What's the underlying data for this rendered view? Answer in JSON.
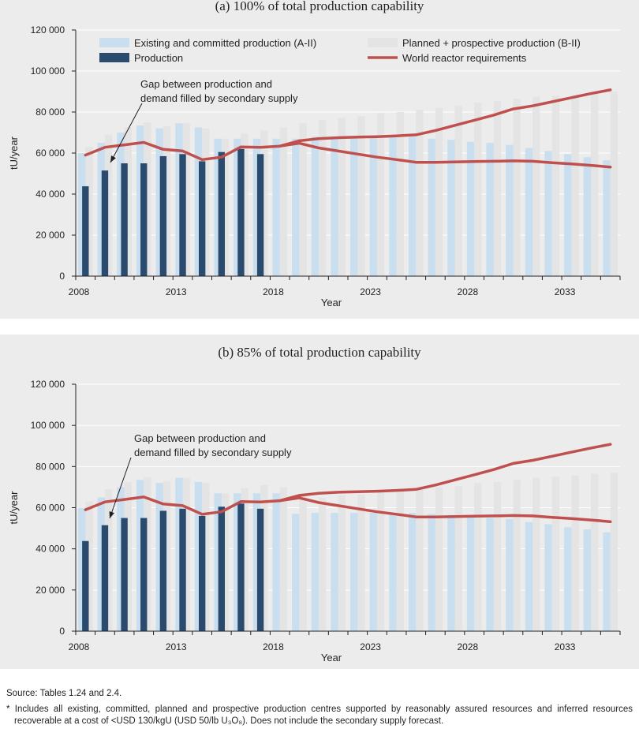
{
  "footer": {
    "source": "Source: Tables 1.24 and 2.4.",
    "note": "* Includes all existing, committed, planned and prospective production centres supported by reasonably assured resources and inferred resources recoverable at a cost of <USD 130/kgU (USD 50/lb U₃O₈). Does not include the secondary supply forecast."
  },
  "colors": {
    "existing": "#c9dff0",
    "planned": "#e4e4e4",
    "production": "#2a4b6e",
    "requirements": "#c0504d",
    "panel_background": "#ececec"
  },
  "chart_data": [
    {
      "type": "bar",
      "title": "(a) 100% of total production capability",
      "xlabel": "Year",
      "ylabel": "tU/year",
      "ylim": [
        0,
        120000
      ],
      "yticks": [
        0,
        20000,
        40000,
        60000,
        80000,
        100000,
        120000
      ],
      "ytick_labels": [
        "0",
        "20 000",
        "40 000",
        "60 000",
        "80 000",
        "100 000",
        "120 000"
      ],
      "xtick_labels": [
        "2008",
        "2013",
        "2018",
        "2023",
        "2028",
        "2033"
      ],
      "grid": true,
      "legend_position": "top",
      "annotation": {
        "text_lines": [
          "Gap between production and",
          "demand filled by secondary supply"
        ],
        "arrow_to_year": 2009
      },
      "categories": [
        2008,
        2009,
        2010,
        2011,
        2012,
        2013,
        2014,
        2015,
        2016,
        2017,
        2018,
        2019,
        2020,
        2021,
        2022,
        2023,
        2024,
        2025,
        2026,
        2027,
        2028,
        2029,
        2030,
        2031,
        2032,
        2033,
        2034,
        2035
      ],
      "series": [
        {
          "name": "Existing and committed production (A-II)",
          "kind": "bar",
          "values": [
            60000,
            65000,
            70000,
            73500,
            72000,
            74500,
            72500,
            67000,
            67000,
            67000,
            67000,
            67000,
            68000,
            68000,
            68000,
            68000,
            68000,
            68000,
            67000,
            66500,
            65500,
            65000,
            64000,
            62500,
            61000,
            59500,
            58000,
            56500
          ]
        },
        {
          "name": "Planned + prospective production (B-II)",
          "kind": "bar",
          "values": [
            63000,
            69000,
            72500,
            75000,
            73000,
            74500,
            72000,
            67000,
            69500,
            71000,
            72500,
            74500,
            76000,
            77000,
            78000,
            79500,
            80000,
            81000,
            82000,
            83000,
            84500,
            85500,
            86500,
            87500,
            88000,
            88500,
            89000,
            90000
          ]
        },
        {
          "name": "Production",
          "kind": "bar",
          "values": [
            43800,
            51500,
            55000,
            55000,
            58500,
            59500,
            56000,
            60500,
            62000,
            59500,
            null,
            null,
            null,
            null,
            null,
            null,
            null,
            null,
            null,
            null,
            null,
            null,
            null,
            null,
            null,
            null,
            null,
            null
          ]
        },
        {
          "name": "World reactor requirements",
          "kind": "line",
          "values": [
            59000,
            62800,
            64000,
            65200,
            61800,
            61000,
            56800,
            58000,
            63000,
            62800,
            63400,
            64800,
            62500,
            61000,
            59500,
            58000,
            56800,
            55500,
            55500,
            55700,
            55900,
            56000,
            56200,
            56000,
            55300,
            54700,
            54000,
            53200
          ]
        },
        {
          "name": "",
          "kind": "line",
          "values": [
            null,
            null,
            null,
            null,
            null,
            null,
            null,
            null,
            null,
            null,
            63400,
            66000,
            67000,
            67500,
            67800,
            68000,
            68400,
            68900,
            71000,
            73500,
            76000,
            78500,
            81500,
            83000,
            85000,
            87000,
            89000,
            90800
          ]
        }
      ]
    },
    {
      "type": "bar",
      "title": "(b) 85% of total production capability",
      "xlabel": "Year",
      "ylabel": "tU/year",
      "ylim": [
        0,
        120000
      ],
      "yticks": [
        0,
        20000,
        40000,
        60000,
        80000,
        100000,
        120000
      ],
      "ytick_labels": [
        "0",
        "20 000",
        "40 000",
        "60 000",
        "80 000",
        "100 000",
        "120 000"
      ],
      "xtick_labels": [
        "2008",
        "2013",
        "2018",
        "2023",
        "2028",
        "2033"
      ],
      "grid": true,
      "legend_position": "none",
      "annotation": {
        "text_lines": [
          "Gap between production and",
          "demand filled by secondary supply"
        ],
        "arrow_to_year": 2009
      },
      "categories": [
        2008,
        2009,
        2010,
        2011,
        2012,
        2013,
        2014,
        2015,
        2016,
        2017,
        2018,
        2019,
        2020,
        2021,
        2022,
        2023,
        2024,
        2025,
        2026,
        2027,
        2028,
        2029,
        2030,
        2031,
        2032,
        2033,
        2034,
        2035
      ],
      "series": [
        {
          "name": "Existing and committed production (A-II)",
          "kind": "bar",
          "values": [
            60000,
            65000,
            70000,
            73500,
            72000,
            74500,
            72500,
            67000,
            67000,
            67000,
            67000,
            57000,
            57500,
            57500,
            57500,
            57500,
            57500,
            57500,
            57000,
            56500,
            55500,
            55000,
            54500,
            53000,
            52000,
            50500,
            49500,
            48000
          ]
        },
        {
          "name": "Planned + prospective production (B-II)",
          "kind": "bar",
          "values": [
            63000,
            69000,
            72500,
            75000,
            73000,
            74500,
            72000,
            67000,
            69500,
            71000,
            70000,
            67000,
            65000,
            66000,
            66500,
            67500,
            68000,
            69000,
            70000,
            70500,
            72000,
            72500,
            73500,
            74500,
            75000,
            75500,
            76500,
            77000
          ]
        },
        {
          "name": "Production",
          "kind": "bar",
          "values": [
            43800,
            51500,
            55000,
            55000,
            58500,
            59500,
            56000,
            60500,
            62000,
            59500,
            null,
            null,
            null,
            null,
            null,
            null,
            null,
            null,
            null,
            null,
            null,
            null,
            null,
            null,
            null,
            null,
            null,
            null
          ]
        },
        {
          "name": "World reactor requirements",
          "kind": "line",
          "values": [
            59000,
            62800,
            64000,
            65200,
            61800,
            61000,
            56800,
            58000,
            63000,
            62800,
            63400,
            64800,
            62500,
            61000,
            59500,
            58000,
            56800,
            55500,
            55500,
            55700,
            55900,
            56000,
            56200,
            56000,
            55300,
            54700,
            54000,
            53200
          ]
        },
        {
          "name": "",
          "kind": "line",
          "values": [
            null,
            null,
            null,
            null,
            null,
            null,
            null,
            null,
            null,
            null,
            63400,
            66000,
            67000,
            67500,
            67800,
            68000,
            68400,
            68900,
            71000,
            73500,
            76000,
            78500,
            81500,
            83000,
            85000,
            87000,
            89000,
            90800
          ]
        }
      ]
    }
  ]
}
